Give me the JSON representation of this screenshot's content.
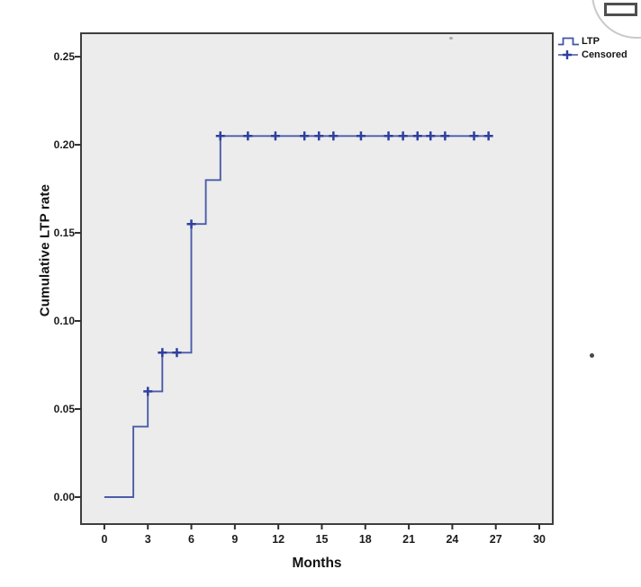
{
  "figure": {
    "kind": "SPSS-style cumulative incidence (Kaplan-Meier) plot"
  },
  "legend": {
    "items": [
      {
        "label": "LTP",
        "marker": "step-line",
        "color": "#4156a8"
      },
      {
        "label": "Censored",
        "marker": "plus",
        "color": "#2e3f9e"
      }
    ]
  },
  "corner_widget": {
    "name": "maximize-button"
  },
  "chart_data": {
    "type": "line",
    "subtype": "kaplan-meier-step",
    "title": "",
    "xlabel": "Months",
    "ylabel": "Cumulative LTP rate",
    "xlim": [
      -1.61,
      30.93
    ],
    "ylim": [
      -0.0153,
      0.2633
    ],
    "x_ticks": [
      0,
      3,
      6,
      9,
      12,
      15,
      18,
      21,
      24,
      27,
      30
    ],
    "y_ticks": [
      0.0,
      0.05,
      0.1,
      0.15,
      0.2,
      0.25
    ],
    "y_tick_labels": [
      "0.00",
      "0.05",
      "0.10",
      "0.15",
      "0.20",
      "0.25"
    ],
    "grid": false,
    "legend_position": "outside-top-right",
    "series": [
      {
        "name": "LTP",
        "type": "step",
        "color": "#4a5ca9",
        "points": [
          [
            0,
            0
          ],
          [
            2,
            0
          ],
          [
            2,
            0.04
          ],
          [
            3,
            0.04
          ],
          [
            3,
            0.06
          ],
          [
            4,
            0.06
          ],
          [
            4,
            0.082
          ],
          [
            6,
            0.082
          ],
          [
            6,
            0.155
          ],
          [
            7,
            0.155
          ],
          [
            7,
            0.18
          ],
          [
            8,
            0.18
          ],
          [
            8,
            0.205
          ],
          [
            26.7,
            0.205
          ]
        ]
      }
    ],
    "censored_marks": {
      "name": "Censored",
      "color": "#2e3f9e",
      "points": [
        [
          3,
          0.06
        ],
        [
          4,
          0.082
        ],
        [
          5,
          0.082
        ],
        [
          6,
          0.155
        ],
        [
          8,
          0.205
        ],
        [
          9.9,
          0.205
        ],
        [
          11.8,
          0.205
        ],
        [
          13.8,
          0.205
        ],
        [
          14.8,
          0.205
        ],
        [
          15.8,
          0.205
        ],
        [
          17.7,
          0.205
        ],
        [
          19.6,
          0.205
        ],
        [
          20.6,
          0.205
        ],
        [
          21.6,
          0.205
        ],
        [
          22.5,
          0.205
        ],
        [
          23.5,
          0.205
        ],
        [
          25.5,
          0.205
        ],
        [
          26.5,
          0.205
        ]
      ]
    }
  }
}
